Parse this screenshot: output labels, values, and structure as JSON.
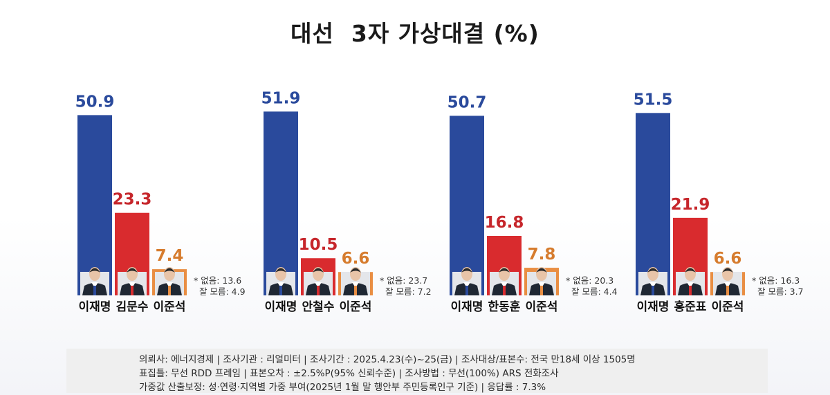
{
  "title": "대선  3자 가상대결 (%)",
  "colors": {
    "bar1": "#2a4a9c",
    "bar2": "#d92b2e",
    "bar3": "#e98e43",
    "val1": "#2a4a9c",
    "val2": "#c6262b",
    "val3": "#d67c2e"
  },
  "chart_data": [
    {
      "type": "bar",
      "categories": [
        "이재명",
        "김문수",
        "이준석"
      ],
      "values": [
        50.9,
        23.3,
        7.4
      ],
      "value_labels": [
        "50.9",
        "23.3",
        "7.4"
      ],
      "notes": [
        "* 없음: 13.6",
        "잘 모름: 4.9"
      ]
    },
    {
      "type": "bar",
      "categories": [
        "이재명",
        "안철수",
        "이준석"
      ],
      "values": [
        51.9,
        10.5,
        6.6
      ],
      "value_labels": [
        "51.9",
        "10.5",
        "6.6"
      ],
      "notes": [
        "* 없음: 23.7",
        "잘 모름: 7.2"
      ]
    },
    {
      "type": "bar",
      "categories": [
        "이재명",
        "한동훈",
        "이준석"
      ],
      "values": [
        50.7,
        16.8,
        7.8
      ],
      "value_labels": [
        "50.7",
        "16.8",
        "7.8"
      ],
      "notes": [
        "* 없음: 20.3",
        "잘 모름: 4.4"
      ]
    },
    {
      "type": "bar",
      "categories": [
        "이재명",
        "홍준표",
        "이준석"
      ],
      "values": [
        51.5,
        21.9,
        6.6
      ],
      "value_labels": [
        "51.5",
        "21.9",
        "6.6"
      ],
      "notes": [
        "* 없음: 16.3",
        "잘 모름: 3.7"
      ]
    }
  ],
  "footer": {
    "line1": "의뢰사: 에너지경제 | 조사기관 : 리얼미터  |  조사기간 : 2025.4.23(수)~25(금) | 조사대상/표본수: 전국 만18세 이상 1505명",
    "line2": "표집틀: 무선 RDD 프레임 | 표본오차 : ±2.5%P(95% 신뢰수준) | 조사방법 : 무선(100%) ARS 전화조사",
    "line3": "가중값 산출보정: 성·연령·지역별 가중 부여(2025년 1월 말 행안부 주민등록인구 기준) | 응답률 : 7.3%"
  }
}
